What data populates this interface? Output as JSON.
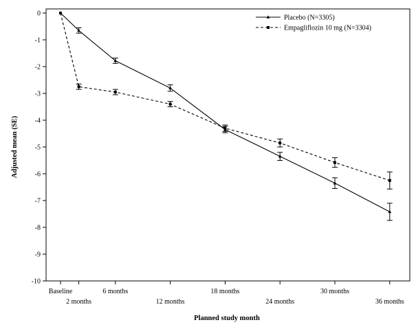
{
  "chart_data": {
    "type": "line",
    "title": "",
    "xlabel": "Planned study month",
    "ylabel": "Adjusted mean (SE)",
    "ylim": [
      -10,
      0
    ],
    "yticks": [
      "0",
      "-1",
      "-2",
      "-3",
      "-4",
      "-5",
      "-6",
      "-7",
      "-8",
      "-9",
      "-10"
    ],
    "x_categories": [
      {
        "label": "Baseline",
        "month": 0,
        "row": 1
      },
      {
        "label": "2 months",
        "month": 2,
        "row": 2
      },
      {
        "label": "6 months",
        "month": 6,
        "row": 1
      },
      {
        "label": "12 months",
        "month": 12,
        "row": 2
      },
      {
        "label": "18 months",
        "month": 18,
        "row": 1
      },
      {
        "label": "24 months",
        "month": 24,
        "row": 2
      },
      {
        "label": "30 months",
        "month": 30,
        "row": 1
      },
      {
        "label": "36 months",
        "month": 36,
        "row": 2
      }
    ],
    "legend_position": "top-right",
    "series": [
      {
        "name": "Placebo (N=3305)",
        "line_style": "solid",
        "marker": "triangle",
        "points": [
          {
            "month": 0,
            "y": 0.0,
            "se": 0.0
          },
          {
            "month": 2,
            "y": -0.65,
            "se": 0.1
          },
          {
            "month": 6,
            "y": -1.78,
            "se": 0.1
          },
          {
            "month": 12,
            "y": -2.8,
            "se": 0.12
          },
          {
            "month": 18,
            "y": -4.35,
            "se": 0.12
          },
          {
            "month": 24,
            "y": -5.35,
            "se": 0.15
          },
          {
            "month": 30,
            "y": -6.35,
            "se": 0.2
          },
          {
            "month": 36,
            "y": -7.42,
            "se": 0.32
          }
        ]
      },
      {
        "name": "Empagliflozin 10 mg (N=3304)",
        "line_style": "dashed",
        "marker": "square",
        "points": [
          {
            "month": 0,
            "y": 0.0,
            "se": 0.0
          },
          {
            "month": 2,
            "y": -2.75,
            "se": 0.1
          },
          {
            "month": 6,
            "y": -2.95,
            "se": 0.1
          },
          {
            "month": 12,
            "y": -3.4,
            "se": 0.1
          },
          {
            "month": 18,
            "y": -4.3,
            "se": 0.12
          },
          {
            "month": 24,
            "y": -4.85,
            "se": 0.15
          },
          {
            "month": 30,
            "y": -5.58,
            "se": 0.18
          },
          {
            "month": 36,
            "y": -6.25,
            "se": 0.32
          }
        ]
      }
    ]
  }
}
